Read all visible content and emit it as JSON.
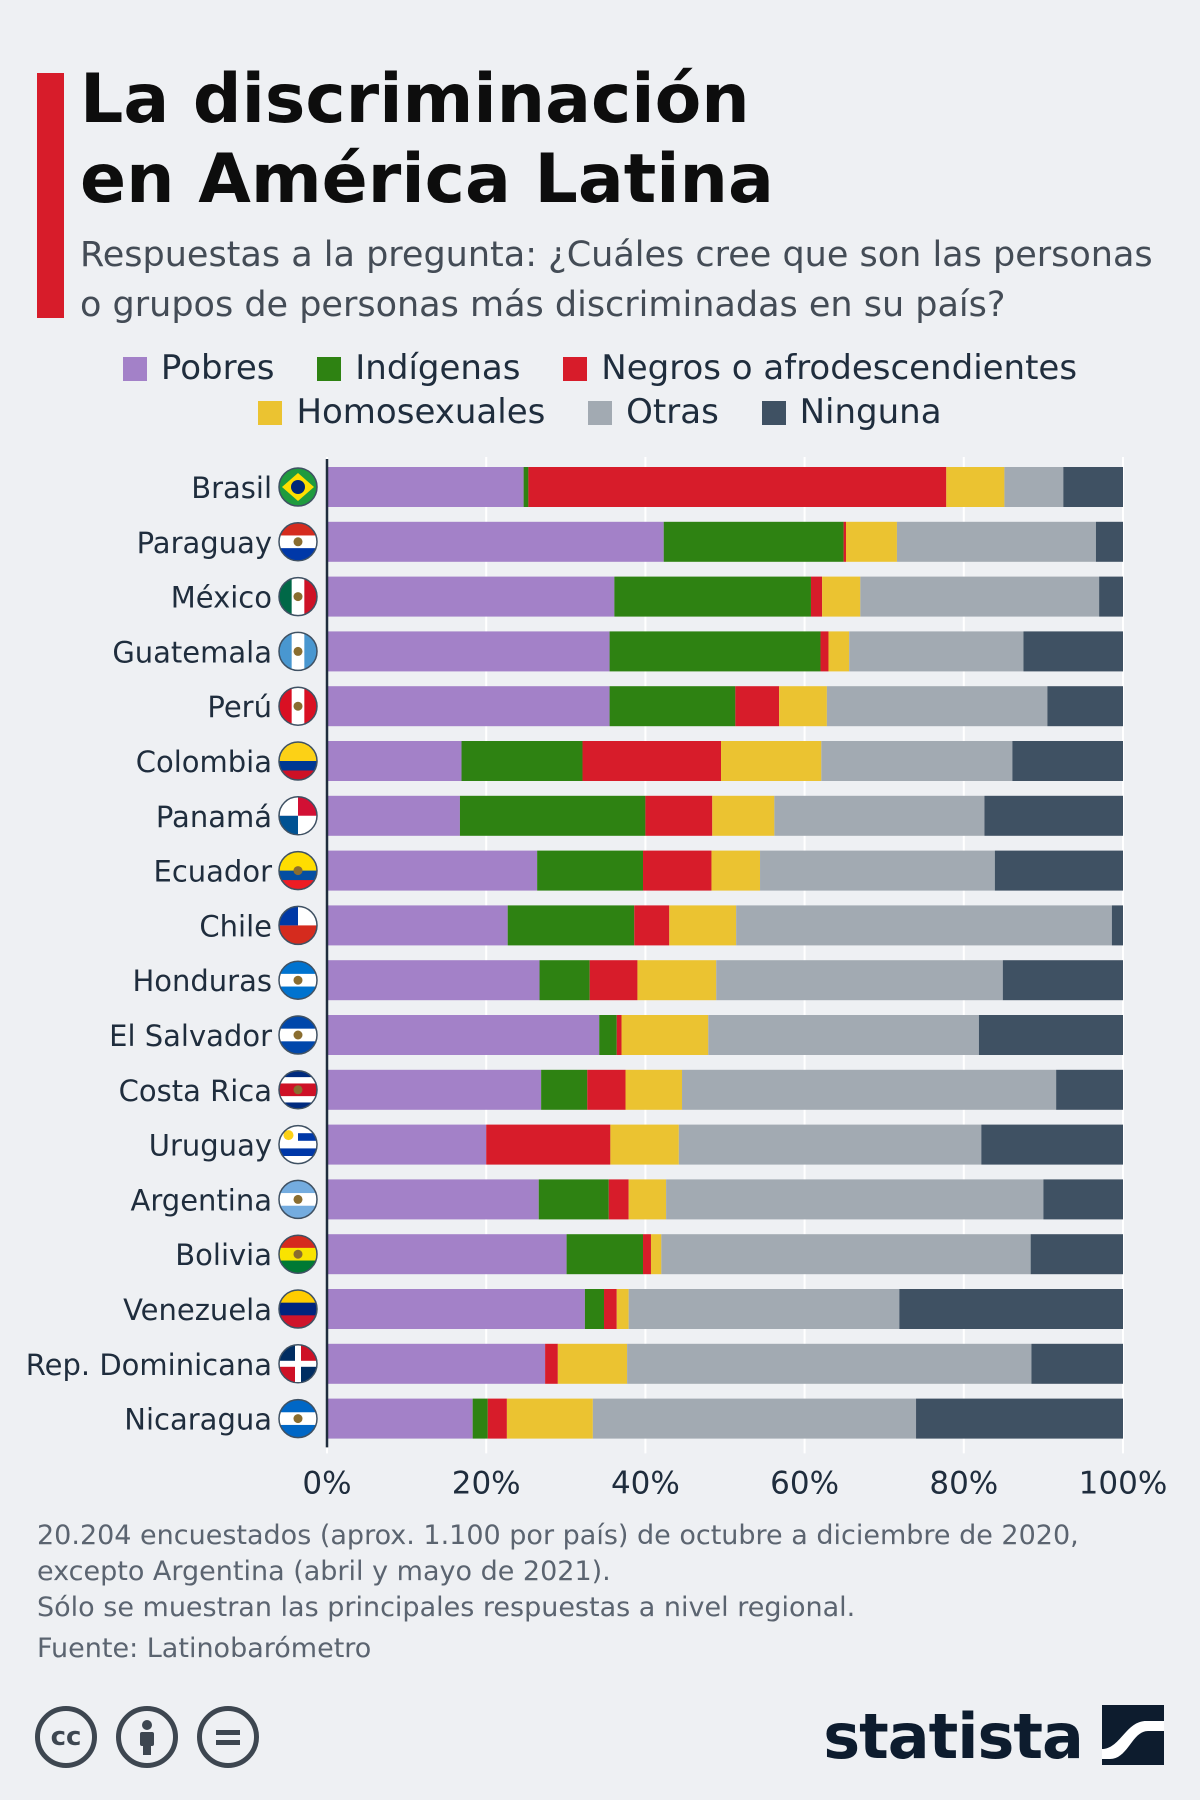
{
  "header": {
    "title_lines": [
      "La discriminación",
      "en América Latina"
    ],
    "subtitle_lines": [
      "Respuestas a la pregunta: ¿Cuáles cree que son las personas",
      "o grupos de personas más discriminadas en su país?"
    ]
  },
  "colors": {
    "accent": "#d71c2a",
    "Pobres": "#a381c8",
    "Indígenas": "#2e8212",
    "Negros o afrodescendientes": "#d71c2a",
    "Homosexuales": "#ebc331",
    "Otras": "#a2aab2",
    "Ninguna": "#3f5163"
  },
  "legend": {
    "row1": [
      "Pobres",
      "Indígenas",
      "Negros o afrodescendientes"
    ],
    "row2": [
      "Homosexuales",
      "Otras",
      "Ninguna"
    ]
  },
  "chart_data": {
    "type": "bar",
    "orientation": "horizontal",
    "stacked": true,
    "xlim": [
      0,
      100
    ],
    "x_ticks": [
      "0%",
      "20%",
      "40%",
      "60%",
      "80%",
      "100%"
    ],
    "grid": true,
    "legend_position": "top",
    "categories": [
      "Brasil",
      "Paraguay",
      "México",
      "Guatemala",
      "Perú",
      "Colombia",
      "Panamá",
      "Ecuador",
      "Chile",
      "Honduras",
      "El Salvador",
      "Costa Rica",
      "Uruguay",
      "Argentina",
      "Bolivia",
      "Venezuela",
      "Rep. Dominicana",
      "Nicaragua"
    ],
    "flags": [
      "flag-brazil-icon",
      "flag-paraguay-icon",
      "flag-mexico-icon",
      "flag-guatemala-icon",
      "flag-peru-icon",
      "flag-colombia-icon",
      "flag-panama-icon",
      "flag-ecuador-icon",
      "flag-chile-icon",
      "flag-honduras-icon",
      "flag-el-salvador-icon",
      "flag-costa-rica-icon",
      "flag-uruguay-icon",
      "flag-argentina-icon",
      "flag-bolivia-icon",
      "flag-venezuela-icon",
      "flag-dominican-republic-icon",
      "flag-nicaragua-icon"
    ],
    "series": [
      {
        "name": "Pobres",
        "values": [
          24.7,
          42.3,
          36.1,
          35.5,
          35.5,
          16.9,
          16.7,
          26.4,
          22.7,
          26.7,
          34.2,
          26.9,
          20.0,
          26.6,
          30.1,
          32.4,
          27.4,
          18.3
        ]
      },
      {
        "name": "Indígenas",
        "values": [
          0.6,
          22.6,
          24.7,
          26.5,
          15.8,
          15.2,
          23.3,
          13.3,
          15.9,
          6.3,
          2.2,
          5.8,
          0.0,
          8.8,
          9.6,
          2.4,
          0.0,
          1.9
        ]
      },
      {
        "name": "Negros o afrodescendientes",
        "values": [
          52.5,
          0.3,
          1.4,
          1.0,
          5.5,
          17.4,
          8.4,
          8.6,
          4.4,
          6.0,
          0.6,
          4.8,
          15.6,
          2.5,
          1.0,
          1.6,
          1.6,
          2.4
        ]
      },
      {
        "name": "Homosexuales",
        "values": [
          7.3,
          6.4,
          4.8,
          2.6,
          6.0,
          12.6,
          7.8,
          6.1,
          8.4,
          9.9,
          10.9,
          7.1,
          8.6,
          4.7,
          1.3,
          1.5,
          8.7,
          10.8
        ]
      },
      {
        "name": "Otras",
        "values": [
          7.4,
          25.0,
          30.0,
          21.9,
          27.7,
          24.0,
          26.4,
          29.5,
          47.2,
          36.0,
          34.0,
          47.0,
          38.0,
          47.4,
          46.4,
          34.0,
          50.8,
          40.6
        ]
      },
      {
        "name": "Ninguna",
        "values": [
          7.5,
          3.4,
          3.0,
          12.5,
          9.5,
          13.9,
          17.4,
          16.1,
          1.4,
          15.1,
          18.1,
          8.4,
          17.8,
          10.0,
          11.6,
          28.1,
          11.5,
          26.0
        ]
      }
    ]
  },
  "footer": {
    "note_lines": [
      "20.204 encuestados (aprox. 1.100 por país) de octubre a diciembre de 2020,",
      "excepto Argentina (abril y mayo de 2021).",
      "Sólo se muestran las principales respuestas a nivel regional."
    ],
    "source": "Fuente: Latinobarómetro",
    "license_icons": [
      "creative-commons-icon",
      "attribution-icon",
      "no-derivatives-icon"
    ],
    "cc_label": "cc",
    "brand": "statista"
  }
}
